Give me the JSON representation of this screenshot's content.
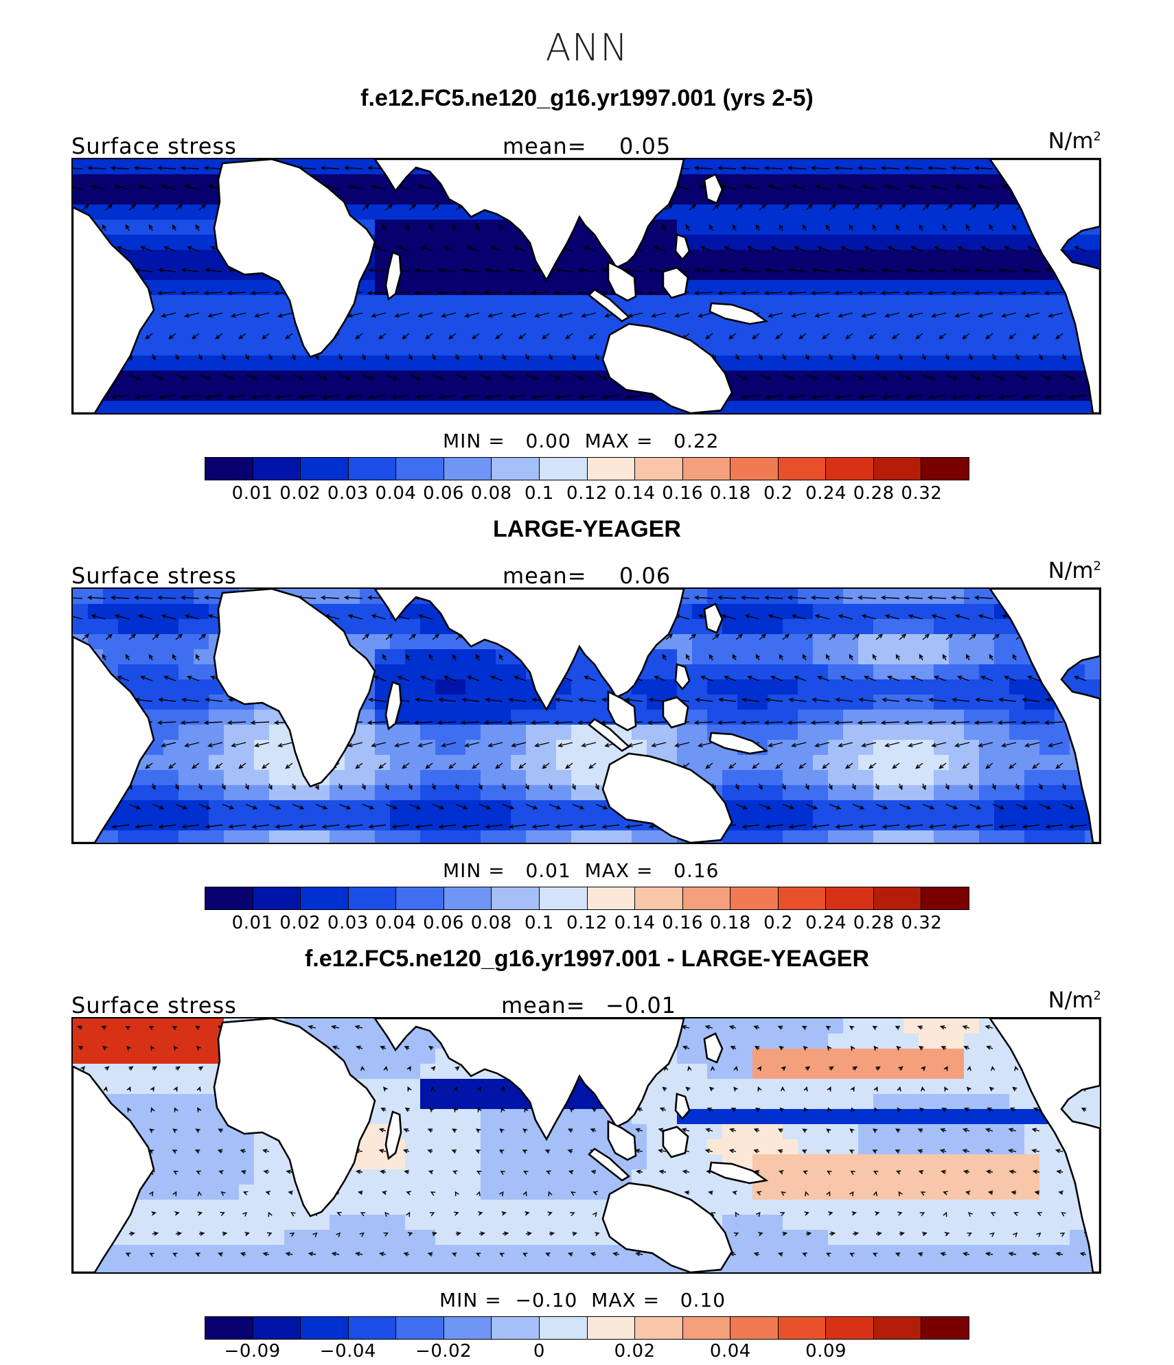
{
  "figure": {
    "season": "ANN"
  },
  "palette": [
    "#08006e",
    "#0015a8",
    "#0030d0",
    "#1a4ee6",
    "#3f6ff0",
    "#6f95f5",
    "#a5bff8",
    "#d3e3fa",
    "#fce8d8",
    "#f8c6a8",
    "#f4a07c",
    "#f07a52",
    "#e8502c",
    "#d83216",
    "#b41e08",
    "#7a0000"
  ],
  "panels": [
    {
      "title": "f.e12.FC5.ne120_g16.yr1997.001 (yrs 2-5)",
      "variable": "Surface stress",
      "mean_label": "mean=",
      "mean": "0.05",
      "units": "N/m",
      "units_sup": "2",
      "min_label": "MIN =",
      "min": "0.00",
      "max_label": "MAX =",
      "max": "0.22",
      "colorbar_ticks": [
        "0.01",
        "0.02",
        "0.03",
        "0.04",
        "0.06",
        "0.08",
        "0.1",
        "0.12",
        "0.14",
        "0.16",
        "0.18",
        "0.2",
        "0.24",
        "0.28",
        "0.32"
      ],
      "field": "mean"
    },
    {
      "title": "LARGE-YEAGER",
      "variable": "Surface stress",
      "mean_label": "mean=",
      "mean": "0.06",
      "units": "N/m",
      "units_sup": "2",
      "min_label": "MIN =",
      "min": "0.01",
      "max_label": "MAX =",
      "max": "0.16",
      "colorbar_ticks": [
        "0.01",
        "0.02",
        "0.03",
        "0.04",
        "0.06",
        "0.08",
        "0.1",
        "0.12",
        "0.14",
        "0.16",
        "0.18",
        "0.2",
        "0.24",
        "0.28",
        "0.32"
      ],
      "field": "obs"
    },
    {
      "title": "f.e12.FC5.ne120_g16.yr1997.001 - LARGE-YEAGER",
      "variable": "Surface stress",
      "mean_label": "mean=",
      "mean": "−0.01",
      "units": "N/m",
      "units_sup": "2",
      "min_label": "MIN =",
      "min": "−0.10",
      "max_label": "MAX =",
      "max": "0.10",
      "colorbar_ticks": [
        "−0.09",
        "",
        "−0.04",
        "",
        "−0.02",
        "",
        "0",
        "",
        "0.02",
        "",
        "0.04",
        "",
        "0.09",
        "",
        ""
      ],
      "field": "diff"
    }
  ]
}
